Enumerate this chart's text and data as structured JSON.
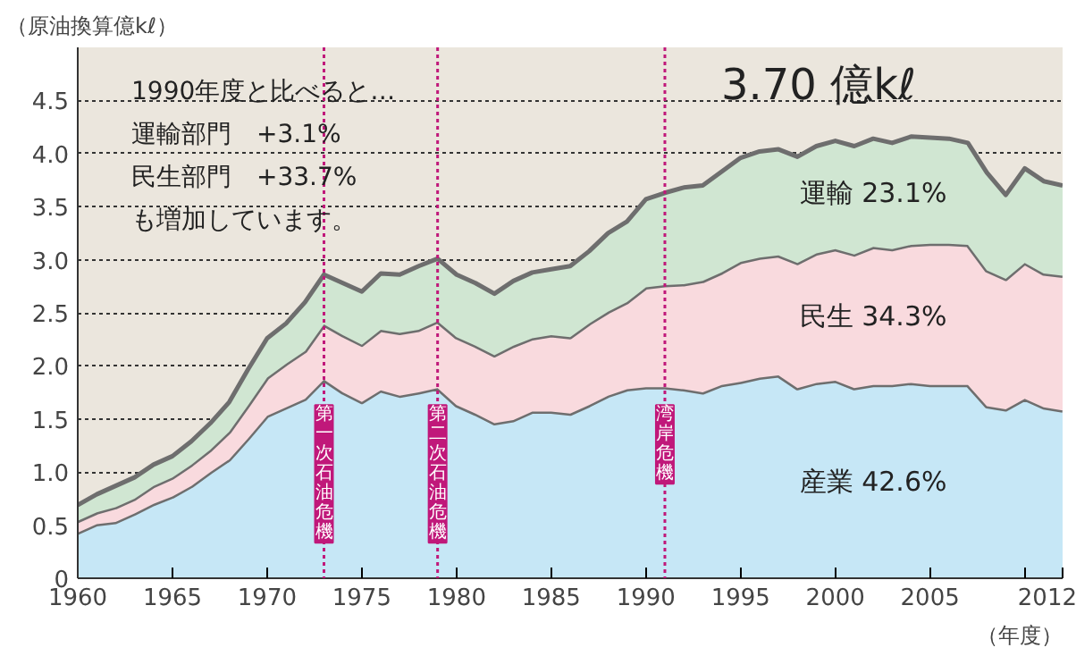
{
  "chart_data": {
    "type": "area",
    "stacked": true,
    "ylabel": "（原油換算億kℓ）",
    "xlabel": "（年度）",
    "x": [
      1960,
      1961,
      1962,
      1963,
      1964,
      1965,
      1966,
      1967,
      1968,
      1969,
      1970,
      1971,
      1972,
      1973,
      1974,
      1975,
      1976,
      1977,
      1978,
      1979,
      1980,
      1981,
      1982,
      1983,
      1984,
      1985,
      1986,
      1987,
      1988,
      1989,
      1990,
      1991,
      1992,
      1993,
      1994,
      1995,
      1996,
      1997,
      1998,
      1999,
      2000,
      2001,
      2002,
      2003,
      2004,
      2005,
      2006,
      2007,
      2008,
      2009,
      2010,
      2011,
      2012
    ],
    "series": [
      {
        "name": "産業 42.6%",
        "color": "#c6e7f6",
        "values": [
          0.43,
          0.51,
          0.53,
          0.61,
          0.7,
          0.77,
          0.87,
          1.0,
          1.12,
          1.32,
          1.53,
          1.61,
          1.69,
          1.87,
          1.75,
          1.66,
          1.77,
          1.72,
          1.75,
          1.79,
          1.63,
          1.55,
          1.46,
          1.49,
          1.57,
          1.57,
          1.55,
          1.63,
          1.72,
          1.78,
          1.8,
          1.8,
          1.78,
          1.75,
          1.82,
          1.85,
          1.89,
          1.91,
          1.79,
          1.84,
          1.86,
          1.79,
          1.82,
          1.82,
          1.84,
          1.82,
          1.82,
          1.82,
          1.62,
          1.59,
          1.69,
          1.61,
          1.58
        ]
      },
      {
        "name": "民生 34.3%",
        "color": "#f9dade",
        "values": [
          0.11,
          0.11,
          0.14,
          0.14,
          0.17,
          0.18,
          0.2,
          0.21,
          0.26,
          0.31,
          0.36,
          0.41,
          0.45,
          0.52,
          0.54,
          0.54,
          0.57,
          0.59,
          0.59,
          0.63,
          0.64,
          0.64,
          0.64,
          0.7,
          0.69,
          0.72,
          0.72,
          0.77,
          0.79,
          0.82,
          0.94,
          0.96,
          0.99,
          1.05,
          1.06,
          1.13,
          1.13,
          1.13,
          1.18,
          1.22,
          1.24,
          1.26,
          1.3,
          1.28,
          1.3,
          1.33,
          1.33,
          1.32,
          1.28,
          1.23,
          1.28,
          1.26,
          1.27
        ]
      },
      {
        "name": "運輸 23.1%",
        "color": "#d0e6d2",
        "values": [
          0.15,
          0.17,
          0.2,
          0.2,
          0.2,
          0.2,
          0.22,
          0.25,
          0.28,
          0.34,
          0.37,
          0.38,
          0.46,
          0.47,
          0.49,
          0.5,
          0.53,
          0.55,
          0.6,
          0.59,
          0.59,
          0.59,
          0.58,
          0.61,
          0.62,
          0.62,
          0.67,
          0.68,
          0.74,
          0.76,
          0.83,
          0.87,
          0.91,
          0.9,
          0.95,
          0.98,
          1.0,
          1.0,
          1.0,
          1.01,
          1.02,
          1.02,
          1.02,
          1.0,
          1.02,
          1.0,
          0.99,
          0.96,
          0.92,
          0.79,
          0.89,
          0.87,
          0.85
        ]
      }
    ],
    "xlim": [
      1960,
      2012
    ],
    "ylim": [
      0,
      5
    ],
    "xticks": [
      1960,
      1965,
      1970,
      1975,
      1980,
      1985,
      1990,
      1995,
      2000,
      2005,
      {
        "value": 2010,
        "label": null
      },
      2012
    ],
    "yticks": [
      0,
      0.5,
      {
        "value": 1,
        "label": "1.0"
      },
      1.5,
      {
        "value": 2,
        "label": "2.0"
      },
      2.5,
      {
        "value": 3,
        "label": "3.0"
      },
      3.5,
      {
        "value": 4,
        "label": "4.0"
      },
      4.5
    ],
    "grid": "y",
    "ref_lines": [
      {
        "axis": "x",
        "value": 1973,
        "label": "第一次石油危機",
        "color": "#c0187a",
        "line_style": "dotted"
      },
      {
        "axis": "x",
        "value": 1979,
        "label": "第二次石油危機",
        "color": "#c0187a",
        "line_style": "dotted"
      },
      {
        "axis": "x",
        "value": 1991,
        "label": "湾岸危機",
        "color": "#c0187a",
        "line_style": "dotted"
      }
    ],
    "annotations": [
      "1990年度と比べると…",
      "運輸部門　+3.1%",
      "民生部門　+33.7%",
      "も増加しています。",
      "3.70 億kℓ"
    ]
  }
}
